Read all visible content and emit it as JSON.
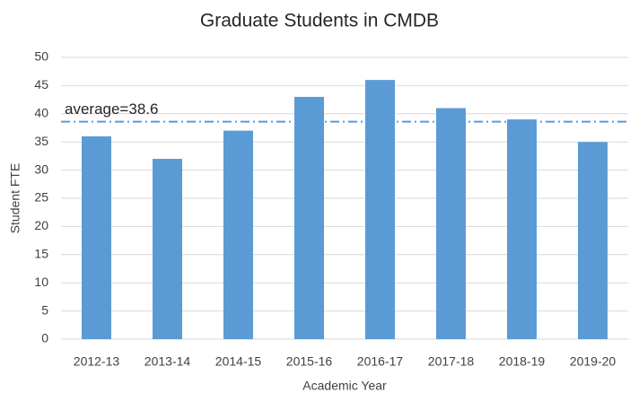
{
  "chart_data": {
    "type": "bar",
    "title": "Graduate Students in CMDB",
    "x_label": "Academic Year",
    "y_label": "Student FTE",
    "categories": [
      "2012-13",
      "2013-14",
      "2014-15",
      "2015-16",
      "2016-17",
      "2017-18",
      "2018-19",
      "2019-20"
    ],
    "values": [
      36,
      32,
      37,
      43,
      46,
      41,
      39,
      35
    ],
    "color": "#5b9bd5",
    "ylim": [
      0,
      50
    ],
    "yticks": [
      0,
      5,
      10,
      15,
      20,
      25,
      30,
      35,
      40,
      45,
      50
    ],
    "grid": true,
    "reference_line": {
      "label": "average=38.6",
      "value": 38.6,
      "color": "#5b9bd5"
    }
  }
}
